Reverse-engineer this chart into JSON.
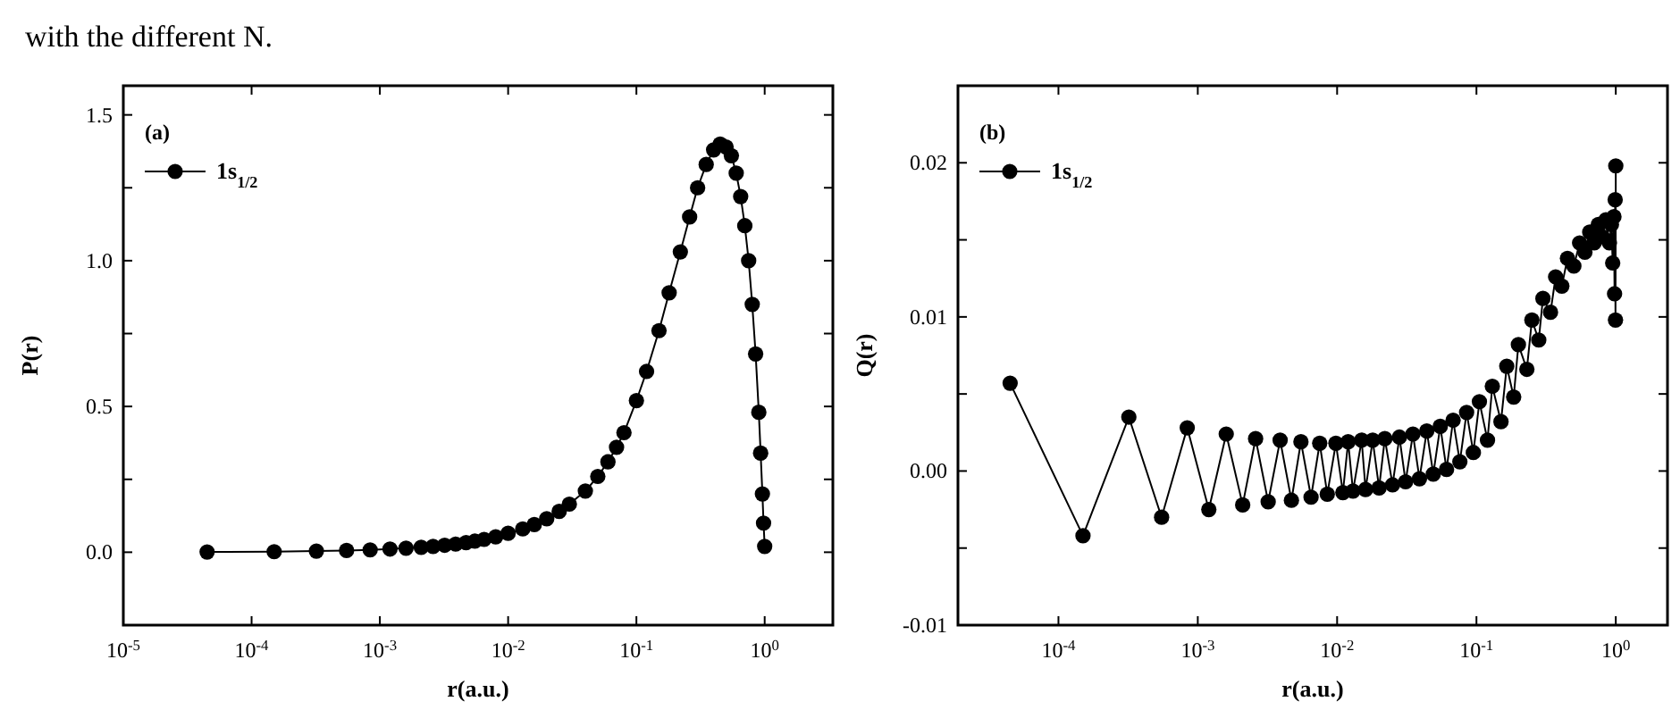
{
  "chart_data": [
    {
      "type": "line",
      "xlabel": "r(a.u.)",
      "ylabel": "P(r)",
      "log": "x",
      "legend": "top left",
      "marker": "circle",
      "line_style": "solid",
      "annotations": [
        "with the different N.",
        "(a)"
      ],
      "xlim": [
        1e-05,
        3.4
      ],
      "ylim": [
        -0.25,
        1.6
      ],
      "xticks": [
        {
          "value": 1e-05,
          "label": "10$^{-5}$"
        },
        {
          "value": 0.0001,
          "label": "10$^{-4}$"
        },
        {
          "value": 0.001,
          "label": "10$^{-3}$"
        },
        {
          "value": 0.01,
          "label": "10$^{-2}$"
        },
        {
          "value": 0.1,
          "label": "10$^{-1}$"
        },
        {
          "value": 1,
          "label": "10$^{0}$"
        }
      ],
      "yticks": [
        {
          "value": 0,
          "label": "0.0"
        },
        {
          "value": 0.25,
          "label": null
        },
        {
          "value": 0.5,
          "label": "0.5"
        },
        {
          "value": 0.75,
          "label": null
        },
        {
          "value": 1,
          "label": "1.0"
        },
        {
          "value": 1.25,
          "label": null
        },
        {
          "value": 1.5,
          "label": "1.5"
        }
      ],
      "series": [
        {
          "name": "1s$_{1/2}$",
          "color": "#000000",
          "x": [
            4.5e-05,
            0.00015,
            0.00032,
            0.00055,
            0.00084,
            0.0012,
            0.0016,
            0.0021,
            0.0026,
            0.0032,
            0.0039,
            0.0047,
            0.0055,
            0.0065,
            0.008,
            0.01,
            0.013,
            0.016,
            0.02,
            0.025,
            0.03,
            0.04,
            0.05,
            0.06,
            0.07,
            0.08,
            0.1,
            0.12,
            0.15,
            0.18,
            0.22,
            0.26,
            0.3,
            0.35,
            0.4,
            0.45,
            0.5,
            0.55,
            0.6,
            0.65,
            0.7,
            0.75,
            0.8,
            0.85,
            0.9,
            0.93,
            0.96,
            0.98,
            1.0
          ],
          "values": [
            0.001,
            0.002,
            0.004,
            0.006,
            0.008,
            0.011,
            0.014,
            0.017,
            0.02,
            0.024,
            0.028,
            0.033,
            0.038,
            0.044,
            0.053,
            0.065,
            0.08,
            0.095,
            0.115,
            0.14,
            0.165,
            0.21,
            0.26,
            0.31,
            0.36,
            0.41,
            0.52,
            0.62,
            0.76,
            0.89,
            1.03,
            1.15,
            1.25,
            1.33,
            1.38,
            1.4,
            1.39,
            1.36,
            1.3,
            1.22,
            1.12,
            1.0,
            0.85,
            0.68,
            0.48,
            0.34,
            0.2,
            0.1,
            0.02
          ]
        }
      ]
    },
    {
      "type": "line",
      "xlabel": "r(a.u.)",
      "ylabel": "Q(r)",
      "log": "x",
      "legend": "top left",
      "marker": "circle",
      "line_style": "solid",
      "annotations": [
        "(b)"
      ],
      "xlim": [
        1.9e-05,
        2.35
      ],
      "ylim": [
        -0.01,
        0.025
      ],
      "xticks": [
        {
          "value": 0.0001,
          "label": "10$^{-4}$"
        },
        {
          "value": 0.001,
          "label": "10$^{-3}$"
        },
        {
          "value": 0.01,
          "label": "10$^{-2}$"
        },
        {
          "value": 0.1,
          "label": "10$^{-1}$"
        },
        {
          "value": 1,
          "label": "10$^{0}$"
        }
      ],
      "yticks": [
        {
          "value": -0.01,
          "label": "-0.01"
        },
        {
          "value": -0.005,
          "label": null
        },
        {
          "value": 0,
          "label": "0.00"
        },
        {
          "value": 0.005,
          "label": null
        },
        {
          "value": 0.01,
          "label": "0.01"
        },
        {
          "value": 0.015,
          "label": null
        },
        {
          "value": 0.02,
          "label": "0.02"
        }
      ],
      "series": [
        {
          "name": "1s$_{1/2}$",
          "color": "#000000",
          "x": [
            4.5e-05,
            0.00015,
            0.00032,
            0.00055,
            0.00084,
            0.0012,
            0.0016,
            0.0021,
            0.0026,
            0.0032,
            0.0039,
            0.0047,
            0.0055,
            0.0065,
            0.0075,
            0.0085,
            0.0098,
            0.011,
            0.012,
            0.013,
            0.015,
            0.016,
            0.018,
            0.02,
            0.022,
            0.025,
            0.028,
            0.031,
            0.035,
            0.039,
            0.044,
            0.049,
            0.055,
            0.061,
            0.068,
            0.076,
            0.085,
            0.095,
            0.105,
            0.12,
            0.13,
            0.15,
            0.165,
            0.185,
            0.2,
            0.23,
            0.25,
            0.28,
            0.3,
            0.34,
            0.37,
            0.41,
            0.45,
            0.5,
            0.55,
            0.6,
            0.65,
            0.7,
            0.75,
            0.8,
            0.85,
            0.9,
            0.93,
            0.95,
            0.97,
            0.98,
            0.99,
            0.995,
            1.0
          ],
          "values": [
            0.0057,
            -0.0042,
            0.0035,
            -0.003,
            0.0028,
            -0.0025,
            0.0024,
            -0.0022,
            0.0021,
            -0.002,
            0.002,
            -0.0019,
            0.0019,
            -0.0017,
            0.0018,
            -0.0015,
            0.0018,
            -0.0014,
            0.0019,
            -0.0013,
            0.002,
            -0.0012,
            0.002,
            -0.0011,
            0.0021,
            -0.0009,
            0.0022,
            -0.0007,
            0.0024,
            -0.0005,
            0.0026,
            -0.0002,
            0.0029,
            0.0001,
            0.0033,
            0.0006,
            0.0038,
            0.0012,
            0.0045,
            0.002,
            0.0055,
            0.0032,
            0.0068,
            0.0048,
            0.0082,
            0.0066,
            0.0098,
            0.0085,
            0.0112,
            0.0103,
            0.0126,
            0.012,
            0.0138,
            0.0133,
            0.0148,
            0.0142,
            0.0155,
            0.0148,
            0.016,
            0.0152,
            0.0163,
            0.0148,
            0.016,
            0.0135,
            0.0165,
            0.0115,
            0.0176,
            0.0098,
            0.0198
          ]
        }
      ]
    }
  ]
}
